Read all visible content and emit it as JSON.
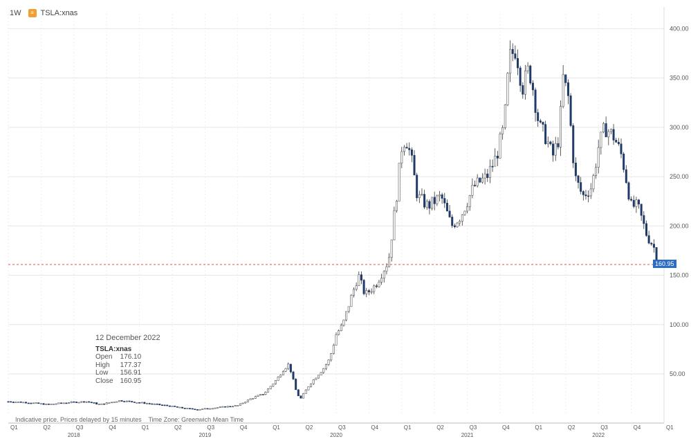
{
  "header": {
    "interval": "1W",
    "symbol": "TSLA:xnas",
    "icon": "exchange-badge-icon"
  },
  "tooltip": {
    "date": "12 December 2022",
    "symbol": "TSLA:xnas",
    "rows": [
      {
        "label": "Open",
        "value": "176.10"
      },
      {
        "label": "High",
        "value": "177.37"
      },
      {
        "label": "Low",
        "value": "156.91"
      },
      {
        "label": "Close",
        "value": "160.95"
      }
    ]
  },
  "footer": {
    "disclaimer": "Indicative price. Prices delayed by 15 minutes",
    "timezone": "Time Zone: Greenwich Mean Time"
  },
  "current_price_label": "160.95",
  "colors": {
    "up": "#ffffff",
    "down": "#1f3a68",
    "wick": "#333333",
    "price_line": "#d9534f",
    "price_tag": "#2b6cc4",
    "grid": "#e6e6e6"
  },
  "chart_data": {
    "type": "candlestick",
    "interval": "1W",
    "ylim": [
      10,
      415
    ],
    "yticks": [
      50,
      100,
      150,
      200,
      250,
      300,
      350,
      400
    ],
    "ytick_labels": [
      "50.00",
      "100.00",
      "150.00",
      "200.00",
      "250.00",
      "300.00",
      "350.00",
      "400.00"
    ],
    "x_quarters": [
      {
        "label": "Q1",
        "t": 2018.0
      },
      {
        "label": "Q2",
        "t": 2018.25
      },
      {
        "label": "Q3",
        "t": 2018.5
      },
      {
        "label": "Q4",
        "t": 2018.75
      },
      {
        "label": "Q1",
        "t": 2019.0
      },
      {
        "label": "Q2",
        "t": 2019.25
      },
      {
        "label": "Q3",
        "t": 2019.5
      },
      {
        "label": "Q4",
        "t": 2019.75
      },
      {
        "label": "Q1",
        "t": 2020.0
      },
      {
        "label": "Q2",
        "t": 2020.25
      },
      {
        "label": "Q3",
        "t": 2020.5
      },
      {
        "label": "Q4",
        "t": 2020.75
      },
      {
        "label": "Q1",
        "t": 2021.0
      },
      {
        "label": "Q2",
        "t": 2021.25
      },
      {
        "label": "Q3",
        "t": 2021.5
      },
      {
        "label": "Q4",
        "t": 2021.75
      },
      {
        "label": "Q1",
        "t": 2022.0
      },
      {
        "label": "Q2",
        "t": 2022.25
      },
      {
        "label": "Q3",
        "t": 2022.5
      },
      {
        "label": "Q4",
        "t": 2022.75
      },
      {
        "label": "Q1",
        "t": 2023.0
      }
    ],
    "x_years": [
      "2018",
      "2019",
      "2020",
      "2021",
      "2022"
    ],
    "xlim": [
      2018.0,
      2023.0
    ],
    "last_close": 160.95,
    "anchors": [
      [
        2018.0,
        22
      ],
      [
        2018.15,
        21
      ],
      [
        2018.3,
        19
      ],
      [
        2018.45,
        21
      ],
      [
        2018.6,
        22
      ],
      [
        2018.7,
        19
      ],
      [
        2018.85,
        23
      ],
      [
        2019.0,
        21
      ],
      [
        2019.2,
        18
      ],
      [
        2019.35,
        15
      ],
      [
        2019.45,
        14
      ],
      [
        2019.6,
        16
      ],
      [
        2019.75,
        18
      ],
      [
        2019.85,
        25
      ],
      [
        2019.95,
        30
      ],
      [
        2020.05,
        45
      ],
      [
        2020.1,
        55
      ],
      [
        2020.14,
        60
      ],
      [
        2020.2,
        30
      ],
      [
        2020.23,
        25
      ],
      [
        2020.3,
        40
      ],
      [
        2020.4,
        55
      ],
      [
        2020.45,
        65
      ],
      [
        2020.5,
        90
      ],
      [
        2020.55,
        100
      ],
      [
        2020.62,
        130
      ],
      [
        2020.67,
        150
      ],
      [
        2020.72,
        130
      ],
      [
        2020.8,
        140
      ],
      [
        2020.9,
        165
      ],
      [
        2020.96,
        230
      ],
      [
        2021.0,
        280
      ],
      [
        2021.03,
        290
      ],
      [
        2021.07,
        270
      ],
      [
        2021.12,
        230
      ],
      [
        2021.2,
        220
      ],
      [
        2021.3,
        230
      ],
      [
        2021.38,
        200
      ],
      [
        2021.45,
        210
      ],
      [
        2021.55,
        240
      ],
      [
        2021.65,
        250
      ],
      [
        2021.72,
        270
      ],
      [
        2021.78,
        300
      ],
      [
        2021.82,
        370
      ],
      [
        2021.87,
        380
      ],
      [
        2021.92,
        340
      ],
      [
        2021.97,
        360
      ],
      [
        2022.0,
        340
      ],
      [
        2022.05,
        300
      ],
      [
        2022.1,
        290
      ],
      [
        2022.15,
        270
      ],
      [
        2022.2,
        290
      ],
      [
        2022.23,
        350
      ],
      [
        2022.27,
        330
      ],
      [
        2022.32,
        250
      ],
      [
        2022.38,
        230
      ],
      [
        2022.45,
        240
      ],
      [
        2022.5,
        280
      ],
      [
        2022.55,
        300
      ],
      [
        2022.62,
        290
      ],
      [
        2022.68,
        270
      ],
      [
        2022.75,
        220
      ],
      [
        2022.8,
        220
      ],
      [
        2022.87,
        190
      ],
      [
        2022.92,
        180
      ],
      [
        2022.95,
        161
      ]
    ]
  }
}
